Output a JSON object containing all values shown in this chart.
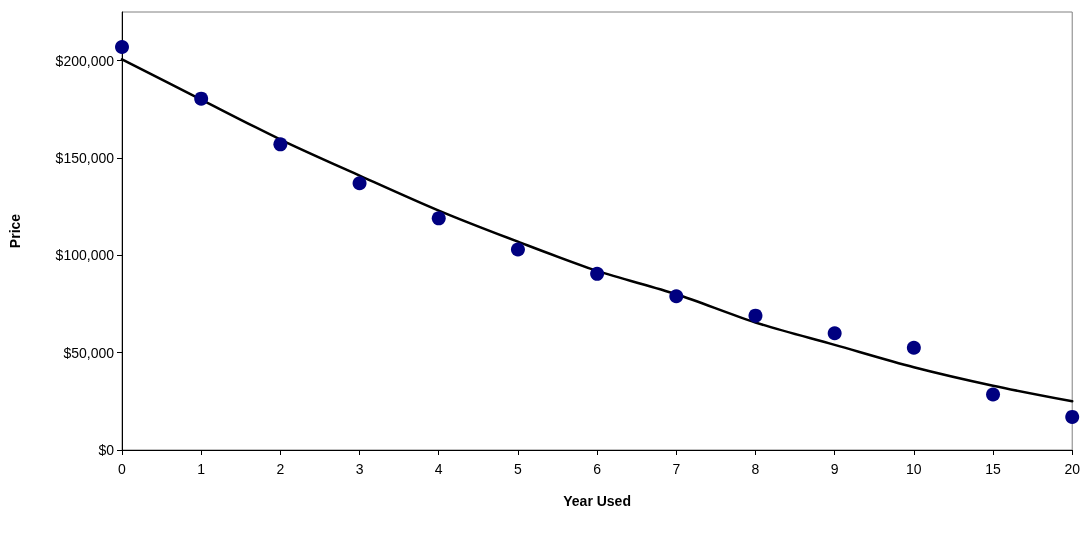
{
  "chart_data": {
    "type": "scatter",
    "xlabel": "Year Used",
    "ylabel": "Price",
    "categories": [
      "0",
      "1",
      "2",
      "3",
      "4",
      "5",
      "6",
      "7",
      "8",
      "9",
      "10",
      "15",
      "20"
    ],
    "series": [
      {
        "color": "#000080",
        "marker": "circle",
        "values": [
          207000,
          180500,
          157000,
          137000,
          119000,
          103000,
          90500,
          79000,
          69000,
          60000,
          52500,
          28500,
          17000
        ]
      },
      {
        "type": "line",
        "color": "#000000",
        "marker": "none",
        "line_style": "solid",
        "values": [
          200700,
          180000,
          159500,
          141000,
          123000,
          107000,
          92000,
          80000,
          65500,
          54000,
          42500,
          33000,
          25000
        ]
      }
    ],
    "ylim": [
      0,
      225000
    ],
    "yticks": [
      {
        "value": 0,
        "label": "$0"
      },
      {
        "value": 50000,
        "label": "$50,000"
      },
      {
        "value": 100000,
        "label": "$100,000"
      },
      {
        "value": 150000,
        "label": "$150,000"
      },
      {
        "value": 200000,
        "label": "$200,000"
      }
    ],
    "grid": false
  }
}
